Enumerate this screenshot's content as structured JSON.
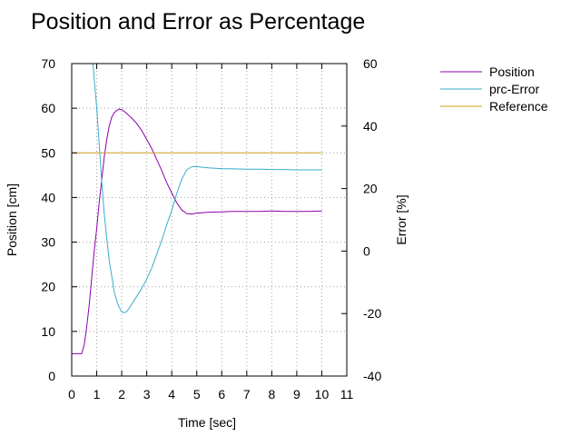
{
  "chart_data": {
    "type": "line",
    "title": "Position and Error as Percentage",
    "xlabel": "Time [sec]",
    "ylabel": "Position [cm]",
    "y2label": "Error [%]",
    "xlim": [
      0,
      11
    ],
    "ylim": [
      0,
      70
    ],
    "y2lim": [
      -40,
      60
    ],
    "xticks": [
      "0",
      "1",
      "2",
      "3",
      "4",
      "5",
      "6",
      "7",
      "8",
      "9",
      "10",
      "11"
    ],
    "yticks": [
      "0",
      "10",
      "20",
      "30",
      "40",
      "50",
      "60",
      "70"
    ],
    "y2ticks": [
      "-40",
      "-20",
      "0",
      "20",
      "40",
      "60"
    ],
    "grid": true,
    "legend_position": "top-right, outside plot",
    "series": [
      {
        "name": "Position",
        "axis": "left",
        "color": "#8b00b0",
        "x": [
          0,
          0.2,
          0.4,
          0.5,
          0.6,
          0.7,
          0.8,
          0.9,
          1.0,
          1.1,
          1.2,
          1.3,
          1.4,
          1.5,
          1.6,
          1.7,
          1.8,
          1.9,
          2.0,
          2.1,
          2.2,
          2.4,
          2.6,
          2.8,
          3.0,
          3.2,
          3.4,
          3.6,
          3.8,
          4.0,
          4.2,
          4.4,
          4.6,
          4.8,
          5.0,
          5.5,
          6.0,
          6.5,
          7.0,
          7.5,
          8.0,
          8.5,
          9.0,
          9.5,
          10.0
        ],
        "y": [
          5,
          5,
          5,
          7,
          11,
          16,
          22,
          28,
          33,
          39,
          44,
          49,
          53,
          56,
          58,
          59,
          59.5,
          59.8,
          59.7,
          59.3,
          58.8,
          57.8,
          56.6,
          55,
          53,
          51,
          48.5,
          46,
          43.3,
          41,
          38.8,
          37.2,
          36.4,
          36.3,
          36.5,
          36.7,
          36.8,
          36.9,
          36.9,
          36.9,
          37,
          36.9,
          36.9,
          36.9,
          37
        ]
      },
      {
        "name": "prc-Error",
        "axis": "right",
        "color": "#3aaccc",
        "x": [
          0.85,
          0.9,
          1.0,
          1.1,
          1.2,
          1.3,
          1.4,
          1.5,
          1.6,
          1.7,
          1.8,
          1.9,
          2.0,
          2.1,
          2.2,
          2.4,
          2.6,
          2.8,
          3.0,
          3.2,
          3.4,
          3.6,
          3.8,
          4.0,
          4.2,
          4.4,
          4.6,
          4.8,
          5.0,
          5.5,
          6.0,
          6.5,
          7.0,
          7.5,
          8.0,
          8.5,
          9.0,
          9.5,
          10.0
        ],
        "y": [
          60,
          55,
          46,
          34,
          22,
          12,
          4,
          -3,
          -8,
          -13,
          -16,
          -18,
          -19.5,
          -19.7,
          -19.4,
          -17,
          -14.5,
          -12,
          -9,
          -5.5,
          -1,
          3.5,
          8.5,
          13,
          18.5,
          23,
          26,
          27,
          27,
          26.6,
          26.4,
          26.3,
          26.2,
          26.2,
          26.1,
          26.1,
          26,
          26,
          26
        ]
      },
      {
        "name": "Reference",
        "axis": "left",
        "color": "#d4a020",
        "x": [
          0,
          10
        ],
        "y": [
          50,
          50
        ]
      }
    ]
  }
}
